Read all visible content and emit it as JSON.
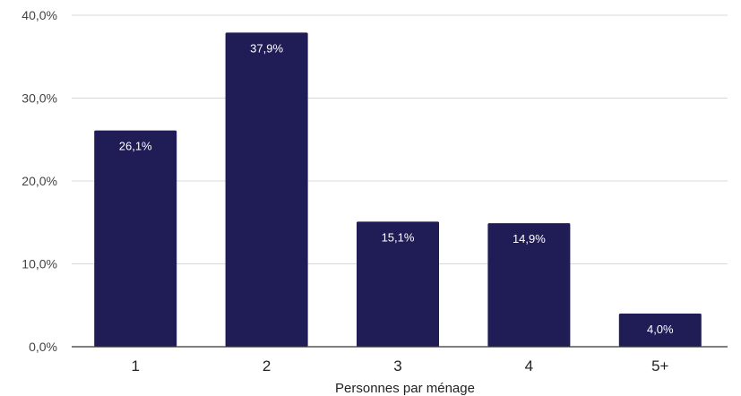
{
  "chart_data": {
    "type": "bar",
    "categories": [
      "1",
      "2",
      "3",
      "4",
      "5+"
    ],
    "values": [
      26.1,
      37.9,
      15.1,
      14.9,
      4.0
    ],
    "data_labels": [
      "26,1%",
      "37,9%",
      "15,1%",
      "14,9%",
      "4,0%"
    ],
    "xlabel": "Personnes par ménage",
    "ylabel": "",
    "ylim": [
      0,
      40
    ],
    "y_ticks": [
      0,
      10,
      20,
      30,
      40
    ],
    "y_tick_labels": [
      "0,0%",
      "10,0%",
      "20,0%",
      "30,0%",
      "40,0%"
    ],
    "grid": true,
    "bar_color": "#201c56",
    "grid_color": "#d9d9d9",
    "axis_color": "#333333"
  }
}
